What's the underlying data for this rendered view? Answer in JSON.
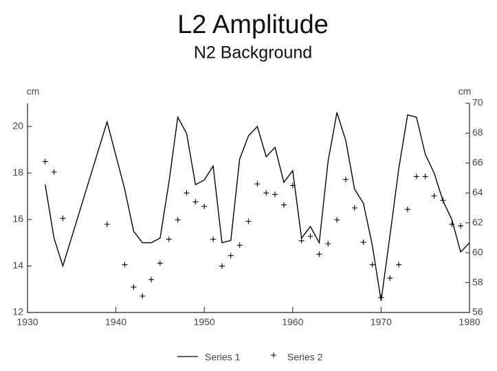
{
  "chart_data": {
    "type": "line",
    "title": "L2 Amplitude",
    "subtitle": "N2 Background",
    "ylabel": "cm",
    "y2label": "cm",
    "xlim": [
      1930,
      1980
    ],
    "xticks": [
      1930,
      1940,
      1950,
      1960,
      1970,
      1980
    ],
    "ylim": [
      12,
      21
    ],
    "yticks": [
      12,
      14,
      16,
      18,
      20
    ],
    "y2lim": [
      56,
      70
    ],
    "y2ticks": [
      56,
      58,
      60,
      62,
      64,
      66,
      68,
      70
    ],
    "series": [
      {
        "name": "Series 1",
        "color": "#000000",
        "marker": "line",
        "x": [
          1932,
          1933,
          1934,
          1939,
          1941,
          1942,
          1943,
          1944,
          1945,
          1946,
          1947,
          1948,
          1949,
          1950,
          1951,
          1952,
          1953,
          1954,
          1955,
          1956,
          1957,
          1958,
          1959,
          1960,
          1961,
          1962,
          1963,
          1964,
          1965,
          1966,
          1967,
          1968,
          1969,
          1970,
          1971,
          1972,
          1973,
          1974,
          1975,
          1976,
          1977,
          1978,
          1979,
          1980
        ],
        "values": [
          17.5,
          15.2,
          14.0,
          20.2,
          17.3,
          15.5,
          15.0,
          15.0,
          15.2,
          17.6,
          20.4,
          19.7,
          17.5,
          17.7,
          18.3,
          15.0,
          15.1,
          18.6,
          19.6,
          20.0,
          18.7,
          19.1,
          17.6,
          18.1,
          15.2,
          15.7,
          15.0,
          18.5,
          20.6,
          19.4,
          17.3,
          16.7,
          14.9,
          12.5,
          15.3,
          18.2,
          20.5,
          20.4,
          18.8,
          18.0,
          16.8,
          16.0,
          14.6,
          15.0
        ]
      },
      {
        "name": "Series 2",
        "color": "#000000",
        "marker": "plus",
        "axis": "y2",
        "x": [
          1932,
          1933,
          1934,
          1939,
          1941,
          1942,
          1943,
          1944,
          1945,
          1946,
          1947,
          1948,
          1949,
          1950,
          1951,
          1952,
          1953,
          1954,
          1955,
          1956,
          1957,
          1958,
          1959,
          1960,
          1961,
          1962,
          1963,
          1964,
          1965,
          1966,
          1967,
          1968,
          1969,
          1970,
          1971,
          1972,
          1973,
          1974,
          1975,
          1976,
          1977,
          1978,
          1979
        ],
        "values": [
          66.1,
          65.4,
          62.3,
          61.9,
          59.2,
          57.7,
          57.1,
          58.2,
          59.3,
          60.9,
          62.2,
          64.0,
          63.4,
          63.1,
          60.9,
          59.1,
          59.8,
          60.5,
          62.1,
          64.6,
          64.0,
          63.9,
          63.2,
          64.5,
          60.8,
          61.1,
          59.9,
          60.6,
          62.2,
          64.9,
          63.0,
          60.7,
          59.2,
          57.0,
          58.3,
          59.2,
          62.9,
          65.1,
          65.1,
          63.8,
          63.5,
          61.9,
          61.8
        ]
      }
    ]
  }
}
